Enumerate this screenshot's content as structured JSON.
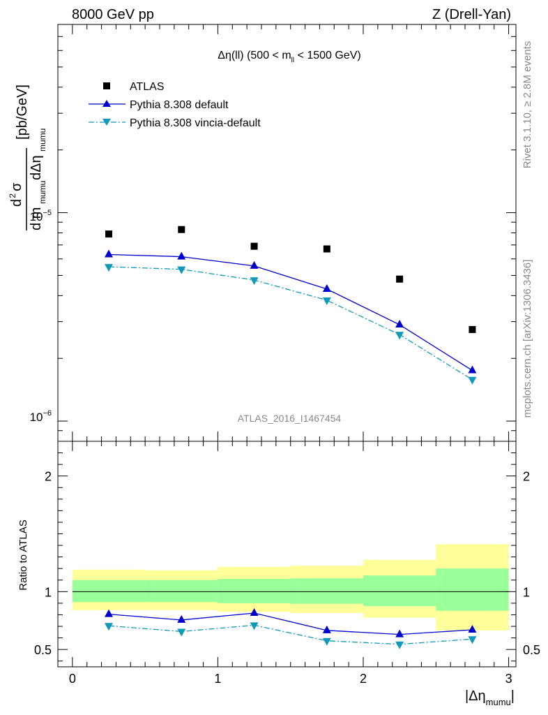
{
  "header": {
    "left": "8000 GeV pp",
    "right": "Z (Drell-Yan)"
  },
  "side_labels": {
    "rivet": "Rivet 3.1.10, ≥ 2.8M events",
    "mcplots": "mcplots.cern.ch [arXiv:1306.3436]"
  },
  "chart_data": [
    {
      "type": "scatter",
      "panel": "main",
      "title": "Δη(ll) (500 < m_ll < 1500 GeV)",
      "watermark": "ATLAS_2016_I1467454",
      "ylabel": "d²σ / (d m_mumu dΔη_mumu) [pb/GeV]",
      "yscale": "log",
      "ylim": [
        8e-07,
        8e-05
      ],
      "xlim": [
        -0.1,
        3.05
      ],
      "ytick_labels": [
        "10^-5",
        "10^-6"
      ],
      "legend_position": "top-left",
      "x": [
        0.25,
        0.75,
        1.25,
        1.75,
        2.25,
        2.75
      ],
      "series": [
        {
          "name": "ATLAS",
          "marker": "square",
          "color": "#000000",
          "values": [
            7.9e-06,
            8.3e-06,
            6.9e-06,
            6.7e-06,
            4.8e-06,
            2.75e-06
          ]
        },
        {
          "name": "Pythia 8.308 default",
          "marker": "triangle-up",
          "line": "solid",
          "color": "#0000cc",
          "values": [
            6.3e-06,
            6.15e-06,
            5.55e-06,
            4.3e-06,
            2.9e-06,
            1.75e-06
          ]
        },
        {
          "name": "Pythia 8.308 vincia-default",
          "marker": "triangle-down",
          "line": "dashdot",
          "color": "#1199bb",
          "values": [
            5.5e-06,
            5.35e-06,
            4.75e-06,
            3.8e-06,
            2.6e-06,
            1.58e-06
          ]
        }
      ]
    },
    {
      "type": "line",
      "panel": "ratio",
      "ylabel": "Ratio to ATLAS",
      "xlabel": "|Δη_mumu|",
      "ylim": [
        0.35,
        2.3
      ],
      "xlim": [
        -0.1,
        3.05
      ],
      "x_ticks": [
        0,
        1,
        2,
        3
      ],
      "y_ticks": [
        0.5,
        1,
        2
      ],
      "x": [
        0.25,
        0.75,
        1.25,
        1.75,
        2.25,
        2.75
      ],
      "bins": [
        [
          0,
          0.5
        ],
        [
          0.5,
          1.0
        ],
        [
          1.0,
          1.5
        ],
        [
          1.5,
          2.0
        ],
        [
          2.0,
          2.5
        ],
        [
          2.5,
          3.0
        ]
      ],
      "band_inner": {
        "color": "#99ff99",
        "low": [
          0.91,
          0.91,
          0.9,
          0.895,
          0.875,
          0.835
        ],
        "high": [
          1.1,
          1.1,
          1.11,
          1.115,
          1.14,
          1.2
        ]
      },
      "band_outer": {
        "color": "#ffff99",
        "low": [
          0.84,
          0.84,
          0.825,
          0.815,
          0.775,
          0.665
        ],
        "high": [
          1.19,
          1.185,
          1.215,
          1.225,
          1.275,
          1.41
        ]
      },
      "series": [
        {
          "name": "Pythia 8.308 default",
          "marker": "triangle-up",
          "line": "solid",
          "color": "#0000cc",
          "values": [
            0.805,
            0.755,
            0.815,
            0.665,
            0.63,
            0.67
          ]
        },
        {
          "name": "Pythia 8.308 vincia-default",
          "marker": "triangle-down",
          "line": "dashdot",
          "color": "#1199bb",
          "values": [
            0.705,
            0.655,
            0.71,
            0.575,
            0.545,
            0.59
          ]
        }
      ]
    }
  ]
}
